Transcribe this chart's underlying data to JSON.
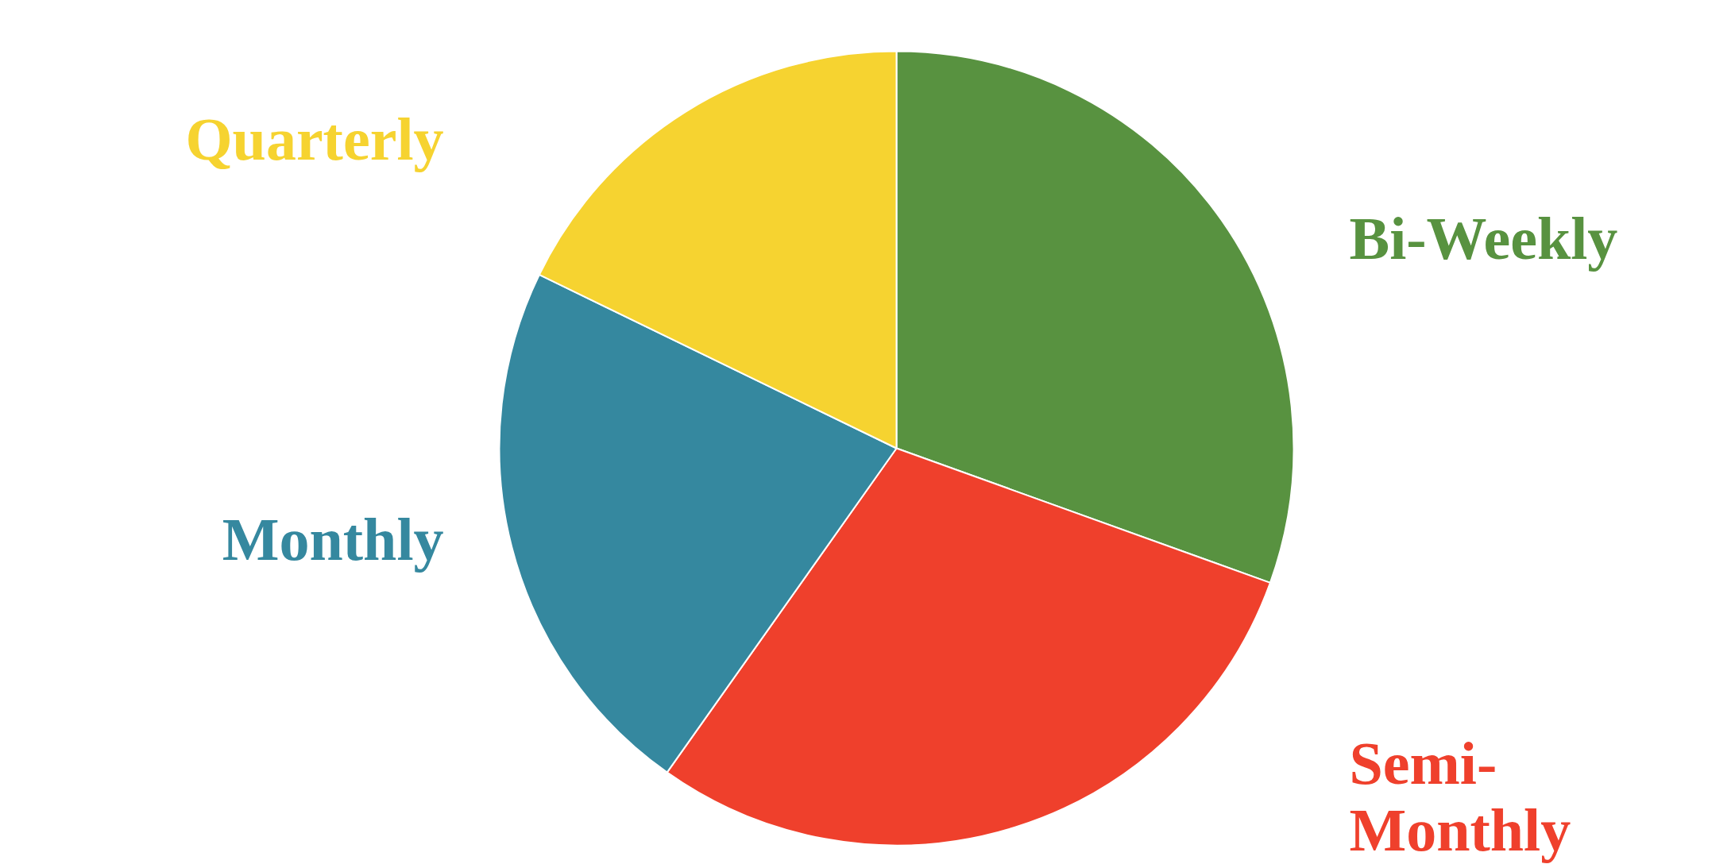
{
  "chart_data": {
    "type": "pie",
    "categories": [
      "Bi-Weekly",
      "Semi-Monthly",
      "Monthly",
      "Quarterly"
    ],
    "values": [
      30.5,
      29.3,
      22.4,
      17.8
    ],
    "colors": [
      "#589240",
      "#ef402c",
      "#35889f",
      "#f6d330"
    ]
  }
}
